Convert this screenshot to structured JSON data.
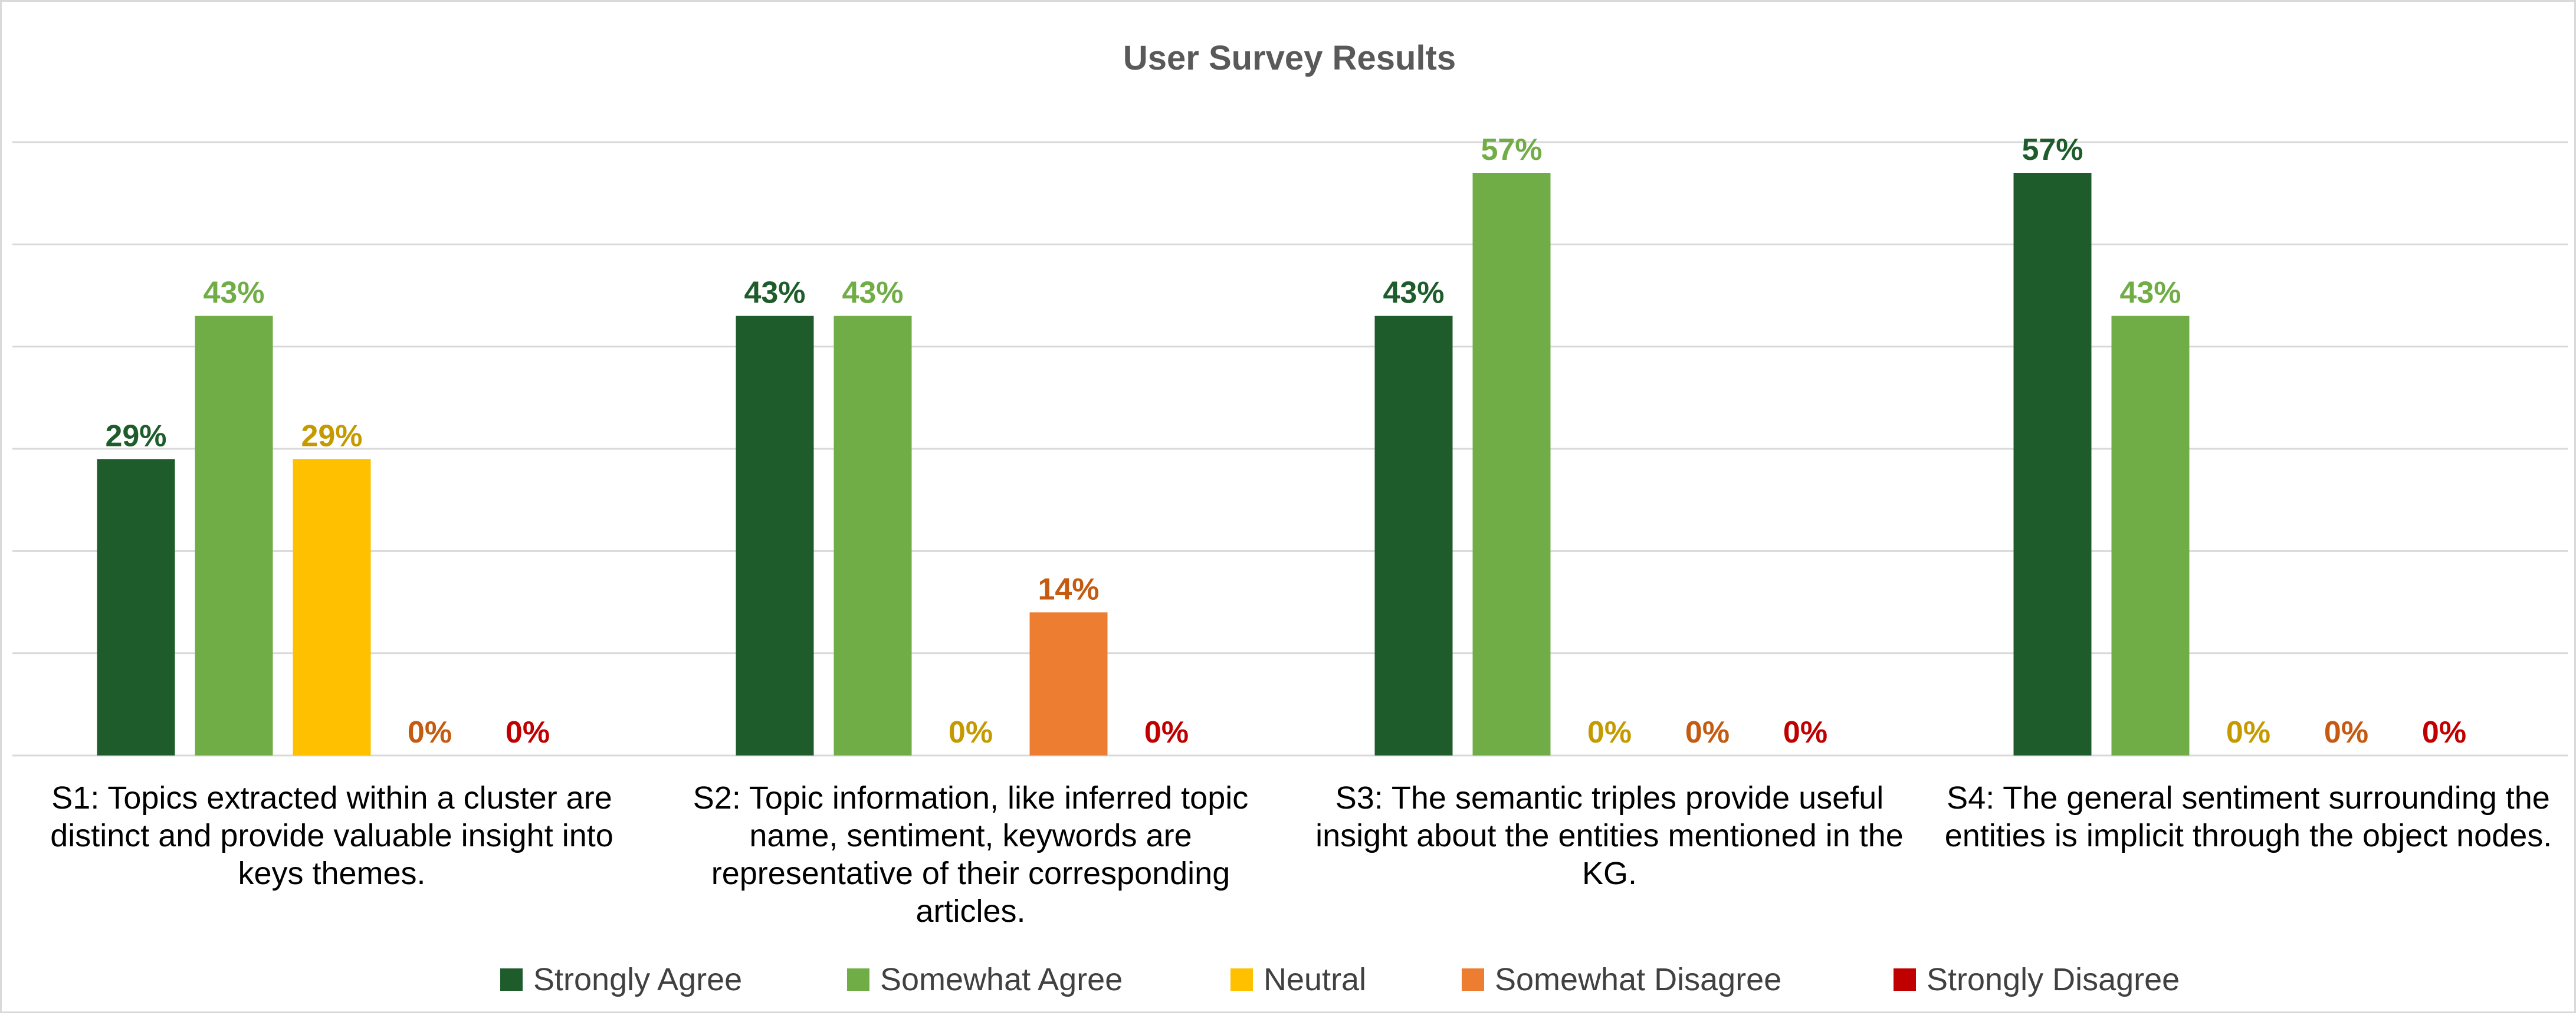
{
  "chart_data": {
    "type": "bar",
    "title": "User Survey Results",
    "categories": [
      "S1: Topics extracted within a cluster are distinct and provide valuable insight into keys themes.",
      "S2: Topic information, like inferred topic name, sentiment, keywords are representative of their corresponding articles.",
      "S3: The semantic triples provide useful insight about the entities mentioned in the KG.",
      "S4: The general sentiment surrounding the entities is implicit through the object nodes."
    ],
    "series": [
      {
        "name": "Strongly Agree",
        "color": "#1e5c2b",
        "label_color": "#1e5c2b",
        "values": [
          29,
          43,
          43,
          57
        ],
        "labels": [
          "29%",
          "43%",
          "43%",
          "57%"
        ]
      },
      {
        "name": "Somewhat Agree",
        "color": "#71ad47",
        "label_color": "#71ad47",
        "values": [
          43,
          43,
          57,
          43
        ],
        "labels": [
          "43%",
          "43%",
          "57%",
          "43%"
        ]
      },
      {
        "name": "Neutral",
        "color": "#ffc000",
        "label_color": "#c49a00",
        "values": [
          29,
          0,
          0,
          0
        ],
        "labels": [
          "29%",
          "0%",
          "0%",
          "0%"
        ]
      },
      {
        "name": "Somewhat Disagree",
        "color": "#ed7d31",
        "label_color": "#c55a11",
        "values": [
          0,
          14,
          0,
          0
        ],
        "labels": [
          "0%",
          "14%",
          "0%",
          "0%"
        ]
      },
      {
        "name": "Strongly Disagree",
        "color": "#c00000",
        "label_color": "#c00000",
        "values": [
          0,
          0,
          0,
          0
        ],
        "labels": [
          "0%",
          "0%",
          "0%",
          "0%"
        ]
      }
    ],
    "ylim": [
      0,
      60
    ],
    "grid": true,
    "legend_position": "bottom",
    "xlabel": "",
    "ylabel": ""
  }
}
